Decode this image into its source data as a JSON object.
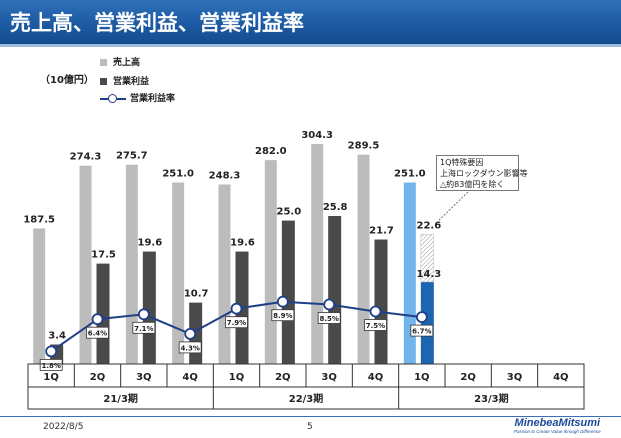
{
  "header": {
    "title": "売上高、営業利益、営業利益率"
  },
  "unit": "（10億円）",
  "legend": [
    {
      "label": "売上高",
      "color": "#bcbcbc"
    },
    {
      "label": "営業利益",
      "color": "#4a4a4a"
    },
    {
      "label": "営業利益率",
      "color": "#1f3f88"
    }
  ],
  "note_lines": [
    "1Q特殊要因",
    "上海ロックダウン影響等",
    "△約83億円を除く"
  ],
  "footer": {
    "date": "2022/8/5",
    "page": "5",
    "logo": "MinebeaMitsumi",
    "tagline": "Passion to Create Value through Difference"
  },
  "chart_data": {
    "type": "bar",
    "quarters": [
      "1Q",
      "2Q",
      "3Q",
      "4Q",
      "1Q",
      "2Q",
      "3Q",
      "4Q",
      "1Q",
      "2Q",
      "3Q",
      "4Q"
    ],
    "periods": [
      "21/3期",
      "22/3期",
      "23/3期"
    ],
    "series": [
      {
        "name": "売上高",
        "values": [
          187.5,
          274.3,
          275.7,
          251.0,
          248.3,
          282.0,
          304.3,
          289.5,
          251.0,
          null,
          null,
          null
        ],
        "labels": [
          "187.5",
          "274.3",
          "275.7",
          "251.0",
          "248.3",
          "282.0",
          "304.3",
          "289.5",
          "251.0",
          "",
          "",
          ""
        ]
      },
      {
        "name": "営業利益",
        "values": [
          3.4,
          17.5,
          19.6,
          10.7,
          19.6,
          25.0,
          25.8,
          21.7,
          14.3,
          null,
          null,
          null
        ],
        "labels": [
          "3.4",
          "17.5",
          "19.6",
          "10.7",
          "19.6",
          "25.0",
          "25.8",
          "21.7",
          "14.3",
          "",
          "",
          ""
        ]
      },
      {
        "name": "営業利益率",
        "values": [
          1.8,
          6.4,
          7.1,
          4.3,
          7.9,
          8.9,
          8.5,
          7.5,
          6.7,
          null,
          null,
          null
        ],
        "labels": [
          "1.8%",
          "6.4%",
          "7.1%",
          "4.3%",
          "7.9%",
          "8.9%",
          "8.5%",
          "7.5%",
          "6.7%",
          "",
          "",
          ""
        ]
      }
    ],
    "special_factor_adjusted": {
      "quarter_index": 8,
      "value": 22.6,
      "label": "22.6"
    },
    "colors": {
      "sales": "#bcbcbc",
      "sales_current": "#72b4ec",
      "op": "#4a4a4a",
      "op_current": "#1a66b0",
      "margin": "#1f3f88"
    }
  }
}
